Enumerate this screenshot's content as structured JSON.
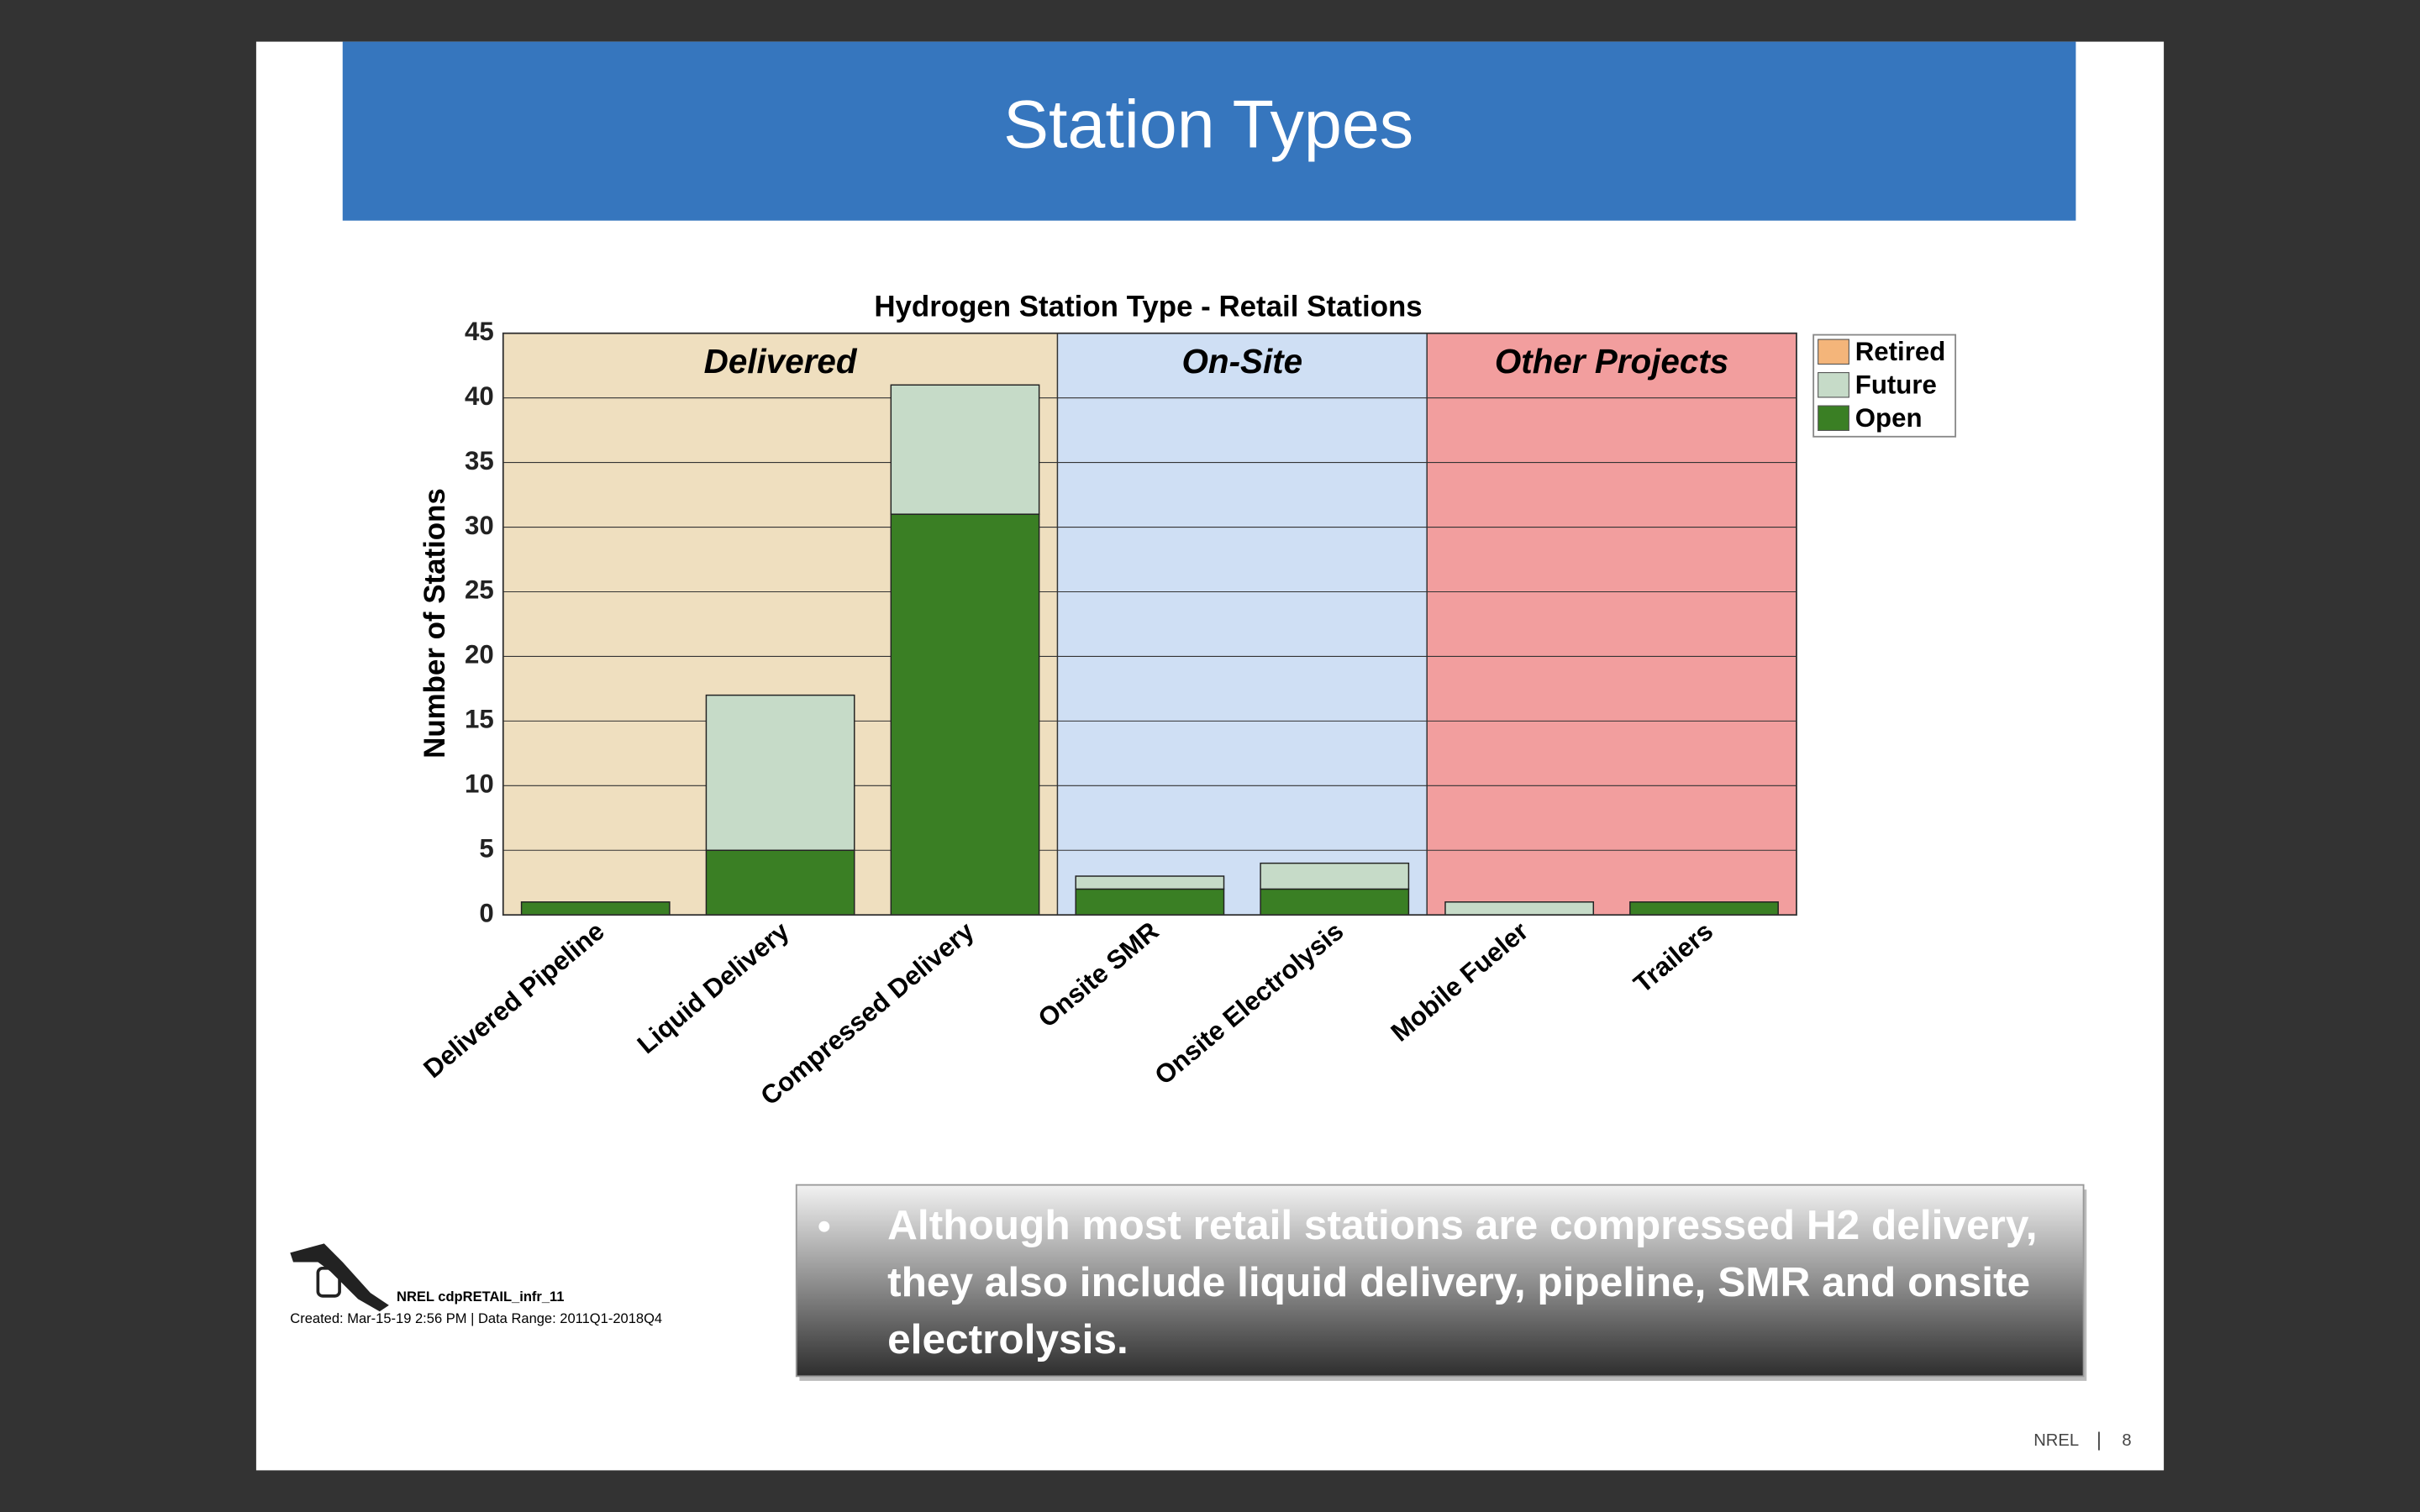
{
  "slide_title": "Station Types",
  "chart_data": {
    "type": "stacked-bar",
    "title": "Hydrogen Station Type - Retail Stations",
    "y_label": "Number of Stations",
    "categories": [
      "Delivered Pipeline",
      "Liquid Delivery",
      "Compressed Delivery",
      "Onsite SMR",
      "Onsite Electrolysis",
      "Mobile Fueler",
      "Trailers"
    ],
    "series": [
      {
        "name": "Retired",
        "color": "#f4b57a",
        "values": [
          0,
          0,
          0,
          0,
          0,
          0,
          0
        ]
      },
      {
        "name": "Future",
        "color": "#c6dbc8",
        "values": [
          0,
          12,
          10,
          1,
          2,
          1,
          0
        ]
      },
      {
        "name": "Open",
        "color": "#3a7f24",
        "values": [
          1,
          5,
          31,
          2,
          2,
          0,
          1
        ]
      }
    ],
    "regions": [
      {
        "label": "Delivered",
        "span": 3,
        "color": "#efdfbf"
      },
      {
        "label": "On-Site",
        "span": 2,
        "color": "#cfdff4"
      },
      {
        "label": "Other Projects",
        "span": 2,
        "color": "#f29e9e"
      }
    ],
    "ylim": [
      0,
      45
    ],
    "yticks": [
      0,
      5,
      10,
      15,
      20,
      25,
      30,
      35,
      40,
      45
    ],
    "grid": true,
    "legend": "outside-right"
  },
  "chart_footer": {
    "id": "NREL cdpRETAIL_infr_11",
    "created": "Created: Mar-15-19  2:56 PM | Data Range: 2011Q1-2018Q4"
  },
  "callout": {
    "lines": [
      "Although most retail stations are compressed H2 delivery,",
      "they also include liquid delivery, pipeline, SMR and onsite",
      "electrolysis."
    ]
  },
  "footer": {
    "org": "NREL",
    "page": "8"
  }
}
